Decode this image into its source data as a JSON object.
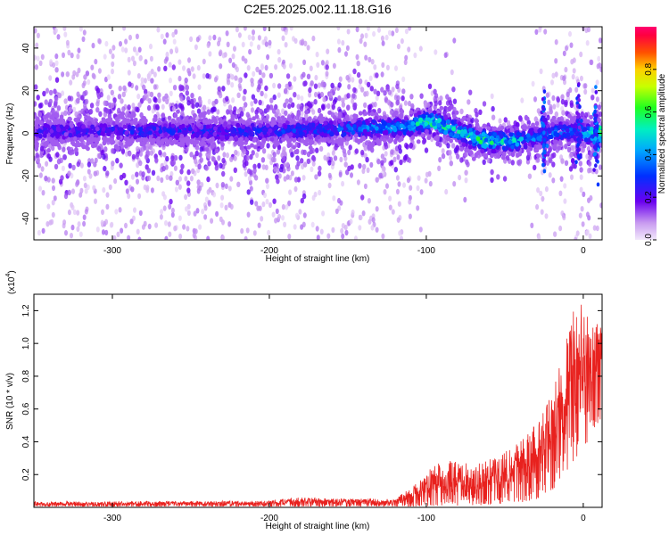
{
  "title": "C2E5.2025.002.11.18.G16",
  "colorbar": {
    "label": "Normalized spectral amplitude",
    "ticks": [
      "0.0",
      "0.2",
      "0.4",
      "0.6",
      "0.8"
    ],
    "tick_values": [
      0.0,
      0.2,
      0.4,
      0.6,
      0.8
    ],
    "range": [
      0,
      1
    ]
  },
  "chart_data": [
    {
      "type": "heatmap",
      "xlabel": "Height of straight line (km)",
      "ylabel": "Frequency (Hz)",
      "xlim": [
        -350,
        12
      ],
      "ylim": [
        -50,
        50
      ],
      "x_ticks": [
        -300,
        -200,
        -100,
        0
      ],
      "x_tick_labels": [
        "-300",
        "-200",
        "-100",
        "0"
      ],
      "y_ticks": [
        -40,
        -20,
        0,
        20,
        40
      ],
      "y_tick_labels": [
        "-40",
        "-20",
        "0",
        "20",
        "40"
      ],
      "band_center_hz": [
        {
          "x": -350,
          "y": 1
        },
        {
          "x": -200,
          "y": 1
        },
        {
          "x": -110,
          "y": 3
        },
        {
          "x": -100,
          "y": 6
        },
        {
          "x": -90,
          "y": 4
        },
        {
          "x": -80,
          "y": 1
        },
        {
          "x": -70,
          "y": -2
        },
        {
          "x": -60,
          "y": -4
        },
        {
          "x": -50,
          "y": -4
        },
        {
          "x": -40,
          "y": -3
        },
        {
          "x": -30,
          "y": -2
        },
        {
          "x": -20,
          "y": 0
        },
        {
          "x": -10,
          "y": 1
        },
        {
          "x": 0,
          "y": 0
        },
        {
          "x": 10,
          "y": 0
        }
      ],
      "peak_amplitude": [
        {
          "x": -350,
          "v": 0.25
        },
        {
          "x": -200,
          "v": 0.3
        },
        {
          "x": -150,
          "v": 0.35
        },
        {
          "x": -110,
          "v": 0.45
        },
        {
          "x": -100,
          "v": 0.6
        },
        {
          "x": -80,
          "v": 0.55
        },
        {
          "x": -60,
          "v": 0.6
        },
        {
          "x": -45,
          "v": 0.5
        },
        {
          "x": -30,
          "v": 0.4
        },
        {
          "x": -10,
          "v": 0.35
        },
        {
          "x": 0,
          "v": 0.45
        },
        {
          "x": 10,
          "v": 0.7
        }
      ],
      "colorscale": "rainbow",
      "grid": false
    },
    {
      "type": "line",
      "xlabel": "Height of straight line (km)",
      "ylabel": "SNR (10 * v/v)",
      "y_multiplier_label": "(x10",
      "y_multiplier_exp": "4",
      "y_multiplier_close": ")",
      "xlim": [
        -350,
        12
      ],
      "ylim": [
        0,
        1.3
      ],
      "x_ticks": [
        -300,
        -200,
        -100,
        0
      ],
      "x_tick_labels": [
        "-300",
        "-200",
        "-100",
        "0"
      ],
      "y_ticks": [
        0.2,
        0.4,
        0.6,
        0.8,
        1.0,
        1.2
      ],
      "y_tick_labels": [
        "0.2",
        "0.4",
        "0.6",
        "0.8",
        "1.0",
        "1.2"
      ],
      "series": [
        {
          "color": "#e8211e",
          "envelope": [
            {
              "x": -350,
              "lo": 0.005,
              "hi": 0.035
            },
            {
              "x": -200,
              "lo": 0.005,
              "hi": 0.04
            },
            {
              "x": -185,
              "lo": 0.005,
              "hi": 0.06
            },
            {
              "x": -120,
              "lo": 0.005,
              "hi": 0.05
            },
            {
              "x": -110,
              "lo": 0.005,
              "hi": 0.12
            },
            {
              "x": -95,
              "lo": 0.01,
              "hi": 0.26
            },
            {
              "x": -80,
              "lo": 0.01,
              "hi": 0.3
            },
            {
              "x": -70,
              "lo": 0.01,
              "hi": 0.26
            },
            {
              "x": -55,
              "lo": 0.02,
              "hi": 0.32
            },
            {
              "x": -40,
              "lo": 0.03,
              "hi": 0.4
            },
            {
              "x": -30,
              "lo": 0.05,
              "hi": 0.52
            },
            {
              "x": -20,
              "lo": 0.1,
              "hi": 0.75
            },
            {
              "x": -12,
              "lo": 0.2,
              "hi": 1.0
            },
            {
              "x": -5,
              "lo": 0.3,
              "hi": 1.25
            },
            {
              "x": 0,
              "lo": 0.3,
              "hi": 1.3
            },
            {
              "x": 5,
              "lo": 0.45,
              "hi": 1.15
            },
            {
              "x": 12,
              "lo": 0.55,
              "hi": 1.1
            }
          ]
        }
      ],
      "grid": false
    }
  ]
}
